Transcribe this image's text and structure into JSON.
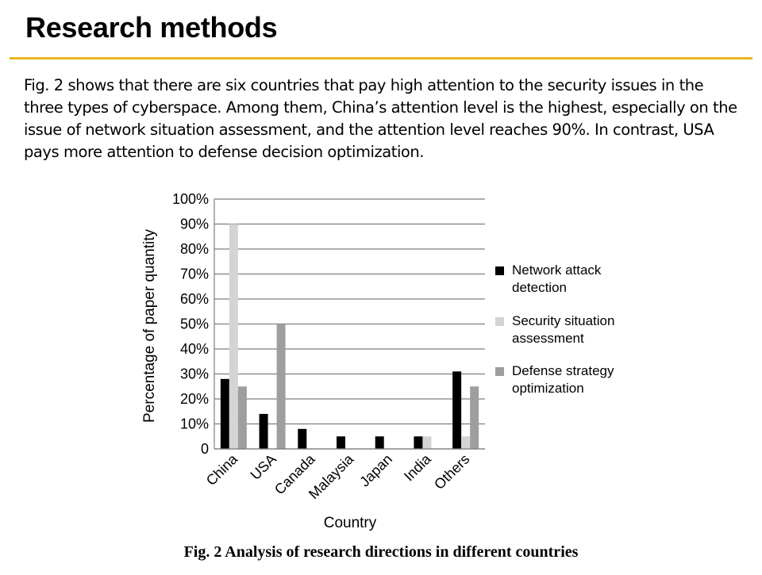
{
  "slide": {
    "title": "Research methods",
    "accent_color": "#E8B81C",
    "body_text": "Fig. 2 shows that there are six countries that pay high attention to the security issues in the three types of cyberspace. Among them, China’s attention level is the highest, especially on the issue of network situation assessment, and the attention level reaches 90%. In contrast, USA pays more attention to defense decision optimization.",
    "caption": "Fig. 2 Analysis of research directions in different countries"
  },
  "chart_data": {
    "type": "bar",
    "title": "",
    "xlabel": "Country",
    "ylabel": "Percentage of paper quantity",
    "categories": [
      "China",
      "USA",
      "Canada",
      "Malaysia",
      "Japan",
      "India",
      "Others"
    ],
    "ylim": [
      0,
      100
    ],
    "yticks": [
      "0",
      "10%",
      "20%",
      "30%",
      "40%",
      "50%",
      "60%",
      "70%",
      "80%",
      "90%",
      "100%"
    ],
    "grid": true,
    "legend_position": "right",
    "series": [
      {
        "name": "Network attack detection",
        "color": "#000000",
        "values": [
          28,
          14,
          8,
          5,
          5,
          5,
          31
        ]
      },
      {
        "name": "Security situation assessment",
        "color": "#D4D4D4",
        "values": [
          90,
          0,
          0,
          0,
          0,
          5,
          5
        ]
      },
      {
        "name": "Defense strategy optimization",
        "color": "#9E9E9E",
        "values": [
          25,
          50,
          0,
          0,
          0,
          0,
          25
        ]
      }
    ]
  }
}
